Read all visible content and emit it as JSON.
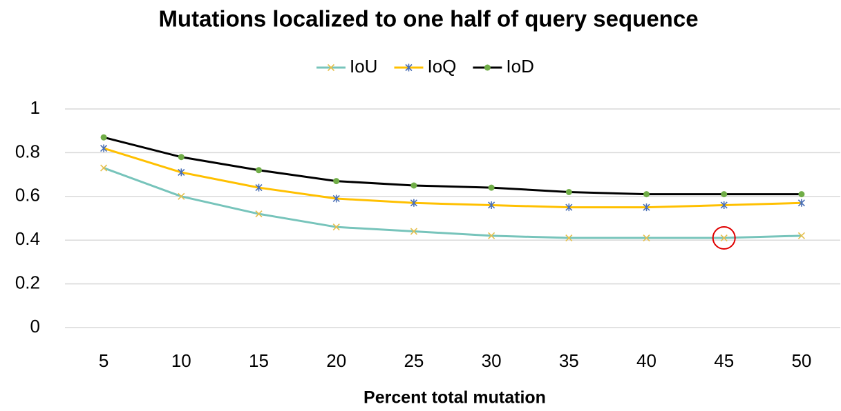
{
  "chart_data": {
    "type": "line",
    "title": "Mutations localized to one half of query sequence",
    "x_label": "Percent total mutation",
    "categories": [
      "5",
      "10",
      "15",
      "20",
      "25",
      "30",
      "35",
      "40",
      "45",
      "50"
    ],
    "series": [
      {
        "name": "IoU",
        "color": "#77c4bb",
        "marker": "x",
        "marker_color": "#e6c04c",
        "values": [
          0.73,
          0.6,
          0.52,
          0.46,
          0.44,
          0.42,
          0.41,
          0.41,
          0.41,
          0.42
        ]
      },
      {
        "name": "IoQ",
        "color": "#ffc000",
        "marker": "star",
        "marker_color": "#4a6fb5",
        "values": [
          0.82,
          0.71,
          0.64,
          0.59,
          0.57,
          0.56,
          0.55,
          0.55,
          0.56,
          0.57
        ]
      },
      {
        "name": "IoD",
        "color": "#000000",
        "marker": "circle",
        "marker_color": "#70ad47",
        "values": [
          0.87,
          0.78,
          0.72,
          0.67,
          0.65,
          0.64,
          0.62,
          0.61,
          0.61,
          0.61
        ]
      }
    ],
    "highlight": {
      "series": "IoU",
      "category": "45",
      "color": "#e00000"
    },
    "ylim": [
      0,
      1
    ],
    "yticks": [
      0,
      0.2,
      0.4,
      0.6,
      0.8,
      1
    ],
    "grid": true,
    "legend": "top"
  }
}
